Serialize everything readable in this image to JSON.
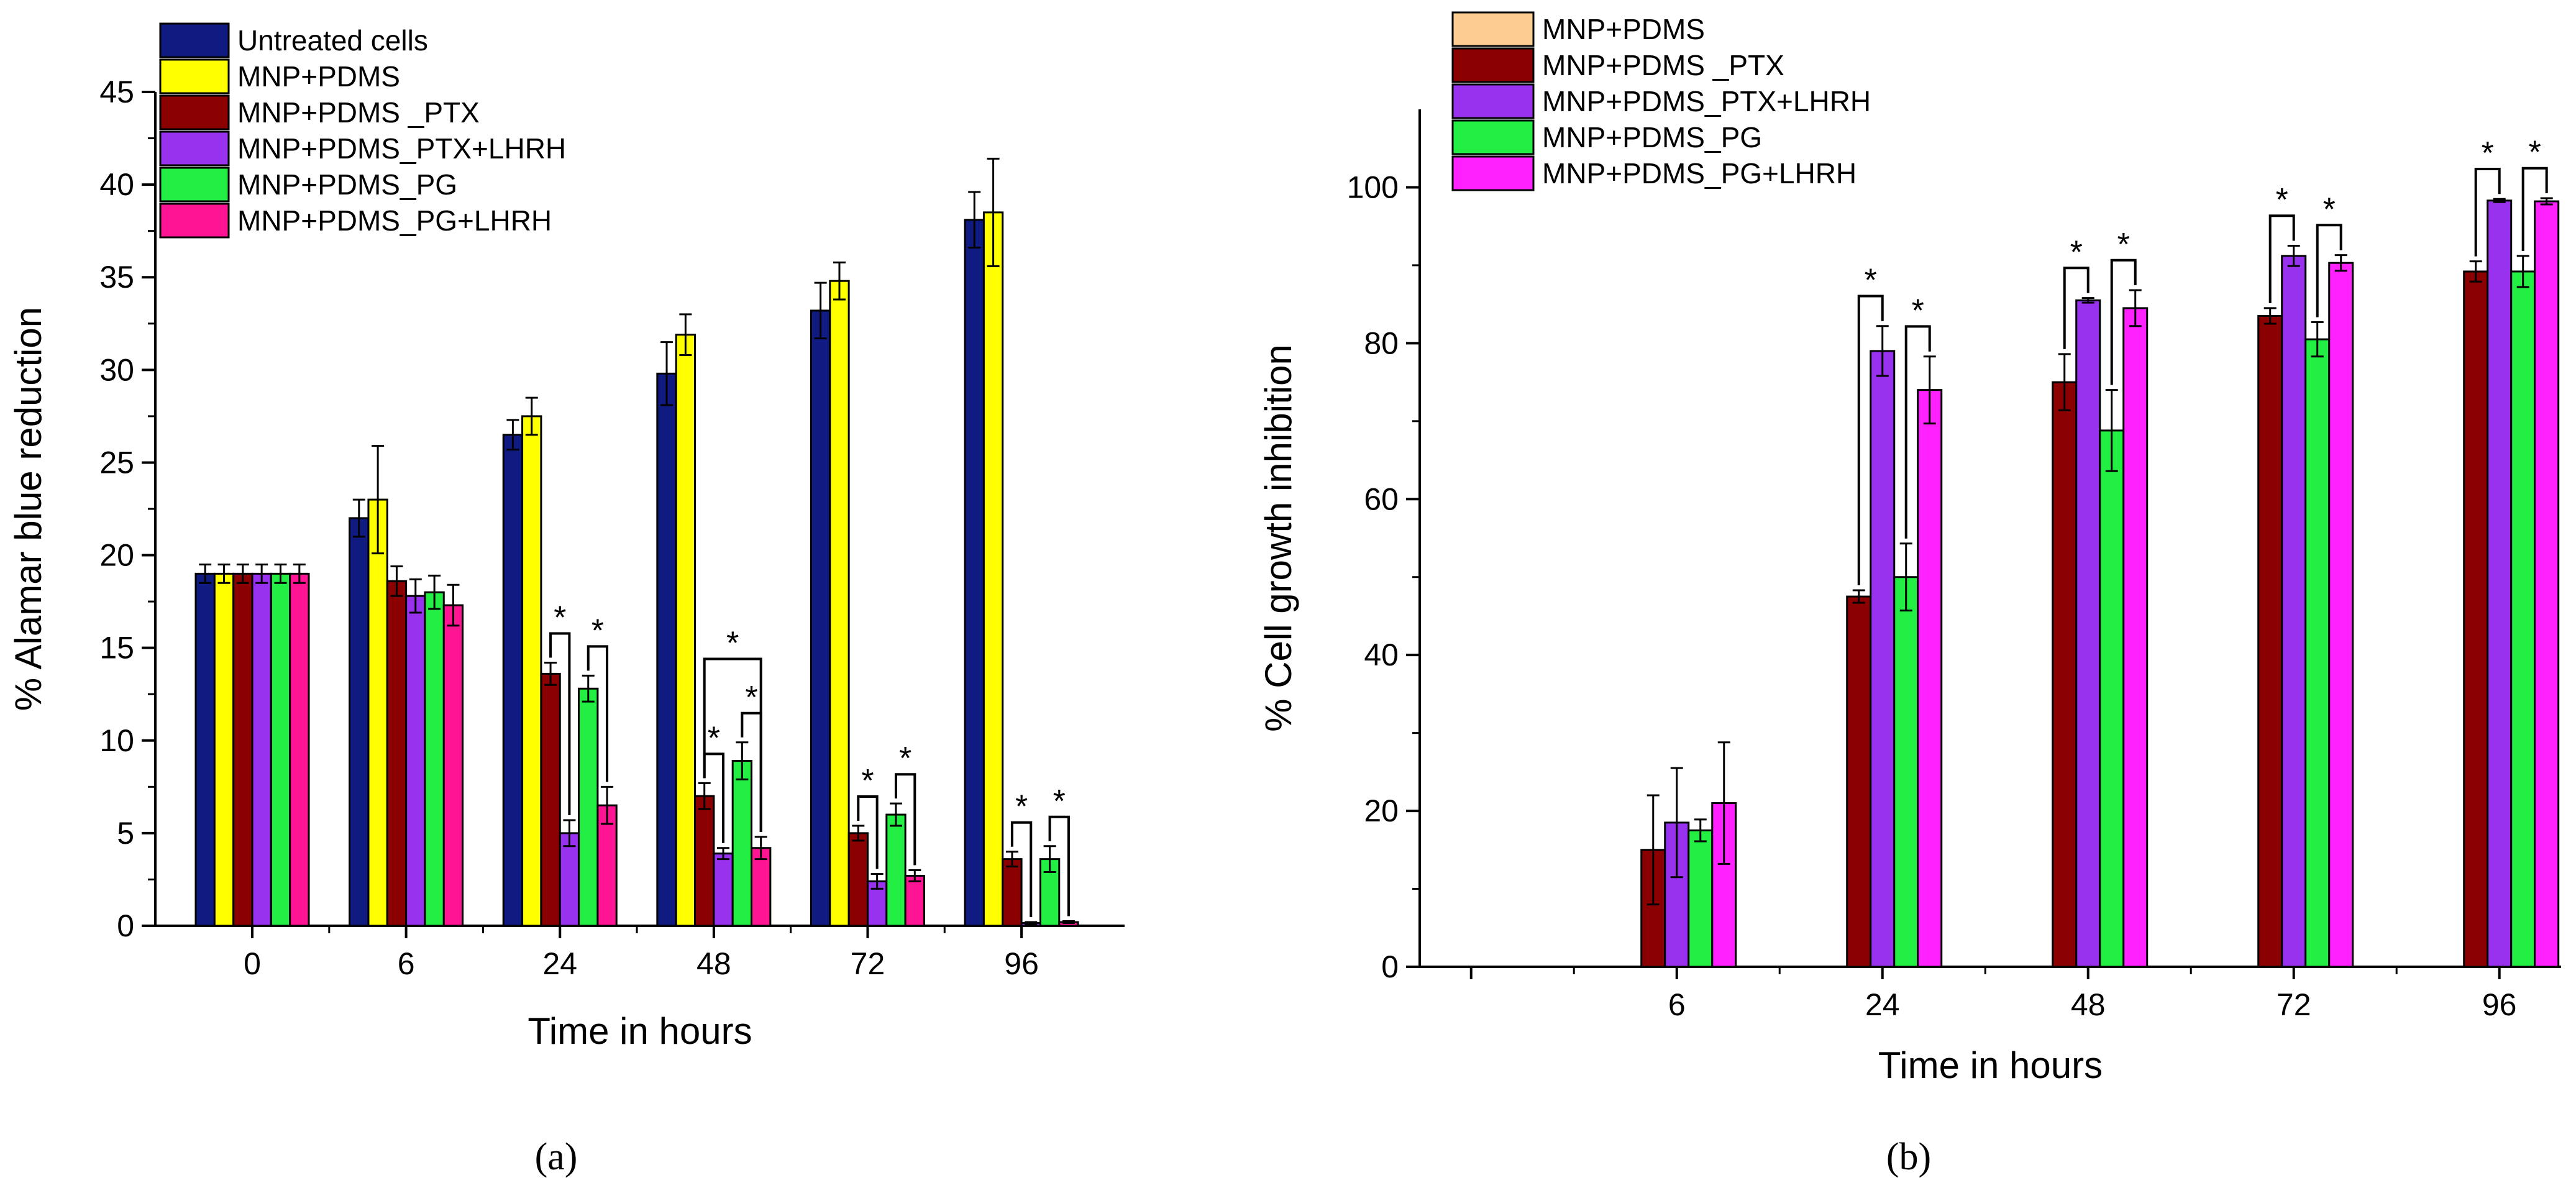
{
  "chart_data": [
    {
      "type": "bar",
      "panel": "(a)",
      "panel_letter": "a",
      "xlabel": "Time in hours",
      "ylabel": "% Alamar blue reduction",
      "ylim": [
        0,
        45
      ],
      "yticks": [
        0,
        5,
        10,
        15,
        20,
        25,
        30,
        35,
        40,
        45
      ],
      "categories": [
        "0",
        "6",
        "24",
        "48",
        "72",
        "96"
      ],
      "legend_position": "top-left",
      "error_bars": true,
      "significance_marker": "*",
      "series": [
        {
          "name": "Untreated cells",
          "color": "#0f1b80",
          "values": [
            19.0,
            22.0,
            26.5,
            29.8,
            33.2,
            38.1
          ],
          "errors": [
            0.5,
            1.0,
            0.8,
            1.7,
            1.5,
            1.5
          ]
        },
        {
          "name": "MNP+PDMS",
          "color": "#ffff00",
          "values": [
            19.0,
            23.0,
            27.5,
            31.9,
            34.8,
            38.5
          ],
          "errors": [
            0.5,
            2.9,
            1.0,
            1.1,
            1.0,
            2.9
          ]
        },
        {
          "name": "MNP+PDMS _PTX",
          "color": "#8b0000",
          "values": [
            19.0,
            18.6,
            13.6,
            7.0,
            5.0,
            3.6
          ],
          "errors": [
            0.5,
            0.8,
            0.6,
            0.7,
            0.4,
            0.4
          ]
        },
        {
          "name": "MNP+PDMS_PTX+LHRH",
          "color": "#9932ee",
          "values": [
            19.0,
            17.8,
            5.0,
            3.9,
            2.4,
            0.15
          ],
          "errors": [
            0.5,
            0.9,
            0.7,
            0.3,
            0.4,
            0.05
          ]
        },
        {
          "name": "MNP+PDMS_PG",
          "color": "#22ee44",
          "values": [
            19.0,
            18.0,
            12.8,
            8.9,
            6.0,
            3.6
          ],
          "errors": [
            0.5,
            0.9,
            0.7,
            1.0,
            0.6,
            0.7
          ]
        },
        {
          "name": "MNP+PDMS_PG+LHRH",
          "color": "#ff1493",
          "values": [
            19.0,
            17.3,
            6.5,
            4.2,
            2.7,
            0.2
          ],
          "errors": [
            0.5,
            1.1,
            1.0,
            0.6,
            0.3,
            0.05
          ]
        }
      ],
      "significance": [
        {
          "category": "24",
          "from_series": 2,
          "to_series": 3
        },
        {
          "category": "24",
          "from_series": 4,
          "to_series": 5
        },
        {
          "category": "48",
          "from_series": 2,
          "to_series": 3
        },
        {
          "category": "48",
          "from_series": 4,
          "to_series": 5
        },
        {
          "category": "48",
          "from_series": 2,
          "to_series": 5
        },
        {
          "category": "72",
          "from_series": 2,
          "to_series": 3
        },
        {
          "category": "72",
          "from_series": 4,
          "to_series": 5
        },
        {
          "category": "96",
          "from_series": 2,
          "to_series": 3
        },
        {
          "category": "96",
          "from_series": 4,
          "to_series": 5
        }
      ]
    },
    {
      "type": "bar",
      "panel": "(b)",
      "panel_letter": "b",
      "xlabel": "Time in hours",
      "ylabel": "% Cell growth inhibition",
      "ylim": [
        0,
        110
      ],
      "yticks": [
        0,
        20,
        40,
        60,
        80,
        100
      ],
      "categories": [
        "6",
        "24",
        "48",
        "72",
        "96"
      ],
      "legend_position": "top-left",
      "error_bars": true,
      "significance_marker": "*",
      "series": [
        {
          "name": "MNP+PDMS",
          "color": "#fdcc92",
          "values": [
            0,
            0,
            0,
            0,
            0
          ],
          "errors": [
            0,
            0,
            0,
            0,
            0
          ]
        },
        {
          "name": "MNP+PDMS _PTX",
          "color": "#8b0000",
          "values": [
            15.0,
            47.5,
            75.0,
            83.5,
            89.2
          ],
          "errors": [
            7.0,
            0.8,
            3.6,
            1.0,
            1.3
          ]
        },
        {
          "name": "MNP+PDMS_PTX+LHRH",
          "color": "#9932ee",
          "values": [
            18.5,
            79.0,
            85.5,
            91.2,
            98.3
          ],
          "errors": [
            7.0,
            3.2,
            0.3,
            1.3,
            0.2
          ]
        },
        {
          "name": "MNP+PDMS_PG",
          "color": "#22ee44",
          "values": [
            17.5,
            50.0,
            68.8,
            80.5,
            89.2
          ],
          "errors": [
            1.4,
            4.3,
            5.2,
            2.2,
            2.0
          ]
        },
        {
          "name": "MNP+PDMS_PG+LHRH",
          "color": "#ff22ff",
          "values": [
            21.0,
            74.0,
            84.5,
            90.3,
            98.2
          ],
          "errors": [
            7.8,
            4.3,
            2.3,
            1.0,
            0.4
          ]
        }
      ],
      "significance": [
        {
          "category": "24",
          "from_series": 1,
          "to_series": 2
        },
        {
          "category": "24",
          "from_series": 3,
          "to_series": 4
        },
        {
          "category": "48",
          "from_series": 1,
          "to_series": 2
        },
        {
          "category": "48",
          "from_series": 3,
          "to_series": 4
        },
        {
          "category": "72",
          "from_series": 1,
          "to_series": 2
        },
        {
          "category": "72",
          "from_series": 3,
          "to_series": 4
        },
        {
          "category": "96",
          "from_series": 1,
          "to_series": 2
        },
        {
          "category": "96",
          "from_series": 3,
          "to_series": 4
        }
      ]
    }
  ]
}
